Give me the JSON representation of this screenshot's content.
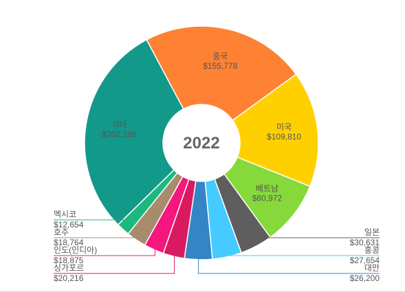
{
  "chart_data": {
    "type": "pie",
    "variant": "donut",
    "center_label": "2022",
    "label_color": "#555555",
    "currency_prefix": "$",
    "slices": [
      {
        "name": "중국",
        "value": 155778,
        "value_label": "$155,778",
        "color": "#FF8133",
        "label_style": "inside"
      },
      {
        "name": "미국",
        "value": 109810,
        "value_label": "$109,810",
        "color": "#FFD000",
        "label_style": "inside"
      },
      {
        "name": "베트남",
        "value": 60972,
        "value_label": "$60,972",
        "color": "#85D93A",
        "label_style": "inside"
      },
      {
        "name": "일본",
        "value": 30631,
        "value_label": "$30,631",
        "color": "#5E5E5E",
        "label_style": "leader-right"
      },
      {
        "name": "홍콩",
        "value": 27654,
        "value_label": "$27,654",
        "color": "#45CBFF",
        "label_style": "leader-right"
      },
      {
        "name": "대만",
        "value": 26200,
        "value_label": "$26,200",
        "color": "#3385C5",
        "label_style": "leader-right"
      },
      {
        "name": "싱가포르",
        "value": 20216,
        "value_label": "$20,216",
        "color": "#D81B60",
        "label_style": "leader-left"
      },
      {
        "name": "인도(인디아)",
        "value": 18875,
        "value_label": "$18,875",
        "color": "#F5167E",
        "label_style": "leader-left"
      },
      {
        "name": "호주",
        "value": 18764,
        "value_label": "$18,764",
        "color": "#A68C6D",
        "label_style": "leader-left"
      },
      {
        "name": "멕시코",
        "value": 12654,
        "value_label": "$12,654",
        "color": "#1CB87E",
        "label_style": "leader-left"
      },
      {
        "name": "기타",
        "value": 202196,
        "value_label": "$202,196",
        "color": "#12998A",
        "label_style": "inside"
      }
    ]
  }
}
